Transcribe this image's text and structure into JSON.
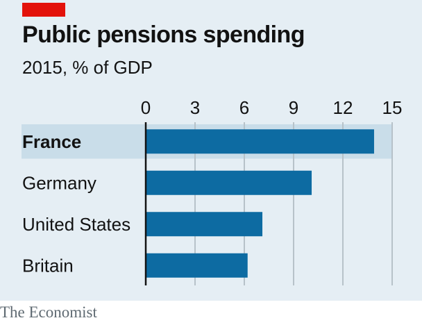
{
  "brand_color": "#e3120b",
  "bar_color": "#0d6ba2",
  "highlight_band_color": "#c9dde9",
  "grid_color": "#b7c2c9",
  "source": "The Economist",
  "chart_data": {
    "type": "bar",
    "orientation": "horizontal",
    "title": "Public pensions spending",
    "subtitle": "2015, % of GDP",
    "categories": [
      "France",
      "Germany",
      "United States",
      "Britain"
    ],
    "values": [
      13.9,
      10.1,
      7.1,
      6.2
    ],
    "highlight": "France",
    "xlim": [
      0,
      15
    ],
    "xticks": [
      0,
      3,
      6,
      9,
      12,
      15
    ],
    "xlabel": "",
    "ylabel": "",
    "grid": true
  }
}
